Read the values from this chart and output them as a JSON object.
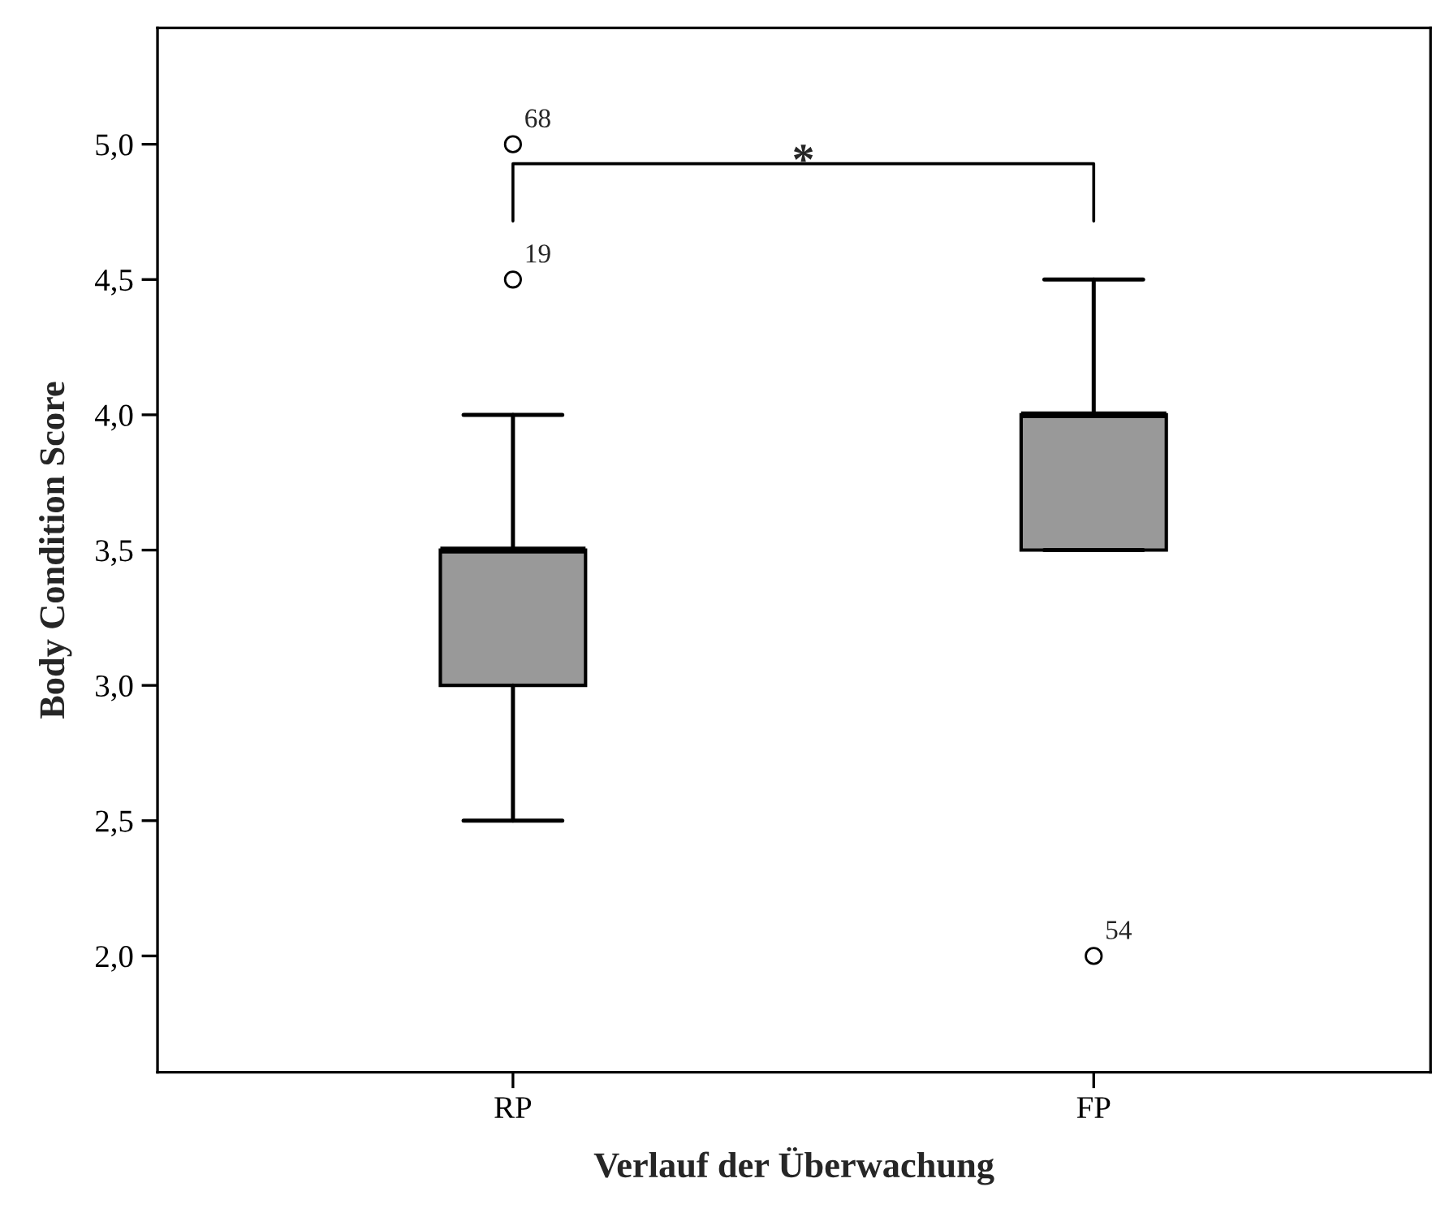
{
  "chart_data": {
    "type": "box",
    "xlabel": "Verlauf der Überwachung",
    "ylabel": "Body Condition Score",
    "categories": [
      "RP",
      "FP"
    ],
    "boxes": [
      {
        "low": 2.5,
        "q1": 3.0,
        "median": 3.5,
        "q3": 3.5,
        "high": 4.0,
        "outliers": [
          5.0,
          4.5
        ]
      },
      {
        "low": 3.5,
        "q1": 3.5,
        "median": 4.0,
        "q3": 4.0,
        "high": 4.5,
        "outliers": [
          2.0
        ]
      }
    ],
    "color": "#999999",
    "ylim": [
      1.57,
      5.43
    ],
    "yticks": [
      {
        "value": 2.0,
        "label": "2,0"
      },
      {
        "value": 2.5,
        "label": "2,5"
      },
      {
        "value": 3.0,
        "label": "3,0"
      },
      {
        "value": 3.5,
        "label": "3,5"
      },
      {
        "value": 4.0,
        "label": "4,0"
      },
      {
        "value": 4.5,
        "label": "4,5"
      },
      {
        "value": 5.0,
        "label": "5,0"
      }
    ],
    "grid": false,
    "legend": false,
    "annotations": [
      "68",
      "19",
      "54",
      "*"
    ]
  }
}
